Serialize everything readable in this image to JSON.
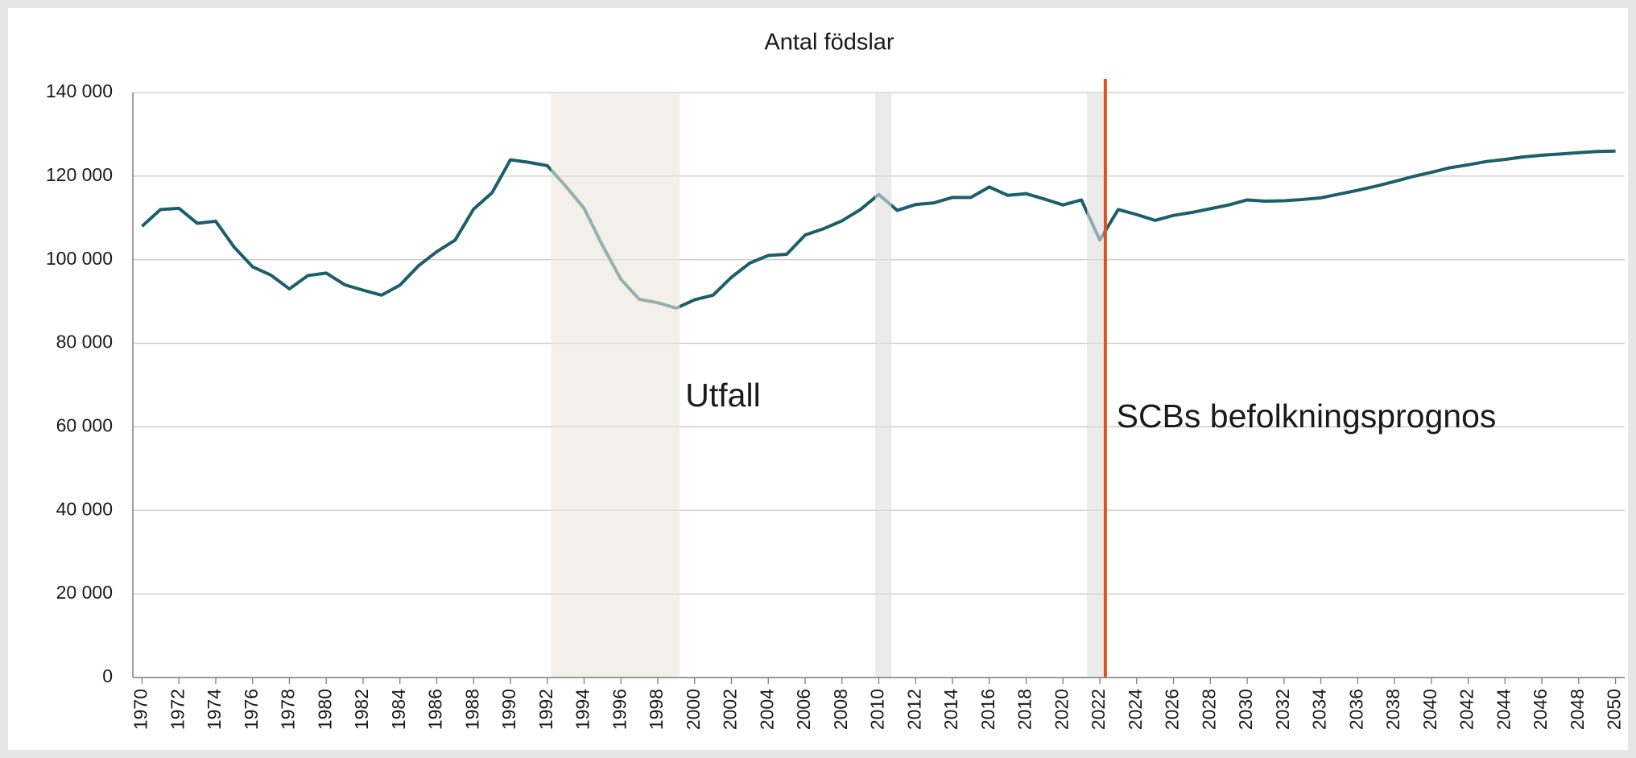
{
  "chart_data": {
    "type": "line",
    "title": "Antal födslar",
    "x": [
      1970,
      1971,
      1972,
      1973,
      1974,
      1975,
      1976,
      1977,
      1978,
      1979,
      1980,
      1981,
      1982,
      1983,
      1984,
      1985,
      1986,
      1987,
      1988,
      1989,
      1990,
      1991,
      1992,
      1993,
      1994,
      1995,
      1996,
      1997,
      1998,
      1999,
      2000,
      2001,
      2002,
      2003,
      2004,
      2005,
      2006,
      2007,
      2008,
      2009,
      2010,
      2011,
      2012,
      2013,
      2014,
      2015,
      2016,
      2017,
      2018,
      2019,
      2020,
      2021,
      2022,
      2023,
      2024,
      2025,
      2026,
      2027,
      2028,
      2029,
      2030,
      2031,
      2032,
      2033,
      2034,
      2035,
      2036,
      2037,
      2038,
      2039,
      2040,
      2041,
      2042,
      2043,
      2044,
      2045,
      2046,
      2047,
      2048,
      2049,
      2050
    ],
    "series": [
      {
        "name": "Antal födslar",
        "color": "#1b5f6b",
        "values": [
          108000,
          112000,
          112300,
          108700,
          109200,
          103000,
          98300,
          96300,
          93000,
          96200,
          96800,
          94000,
          92700,
          91500,
          93900,
          98500,
          101900,
          104700,
          112100,
          116000,
          123900,
          123300,
          122500,
          117600,
          112300,
          103400,
          95300,
          90500,
          89700,
          88400,
          90400,
          91500,
          95800,
          99200,
          101000,
          101300,
          105900,
          107400,
          109300,
          112000,
          115600,
          111800,
          113200,
          113600,
          114900,
          114900,
          117400,
          115400,
          115800,
          114500,
          113100,
          114300,
          104700,
          112000,
          110800,
          109400,
          110600,
          111300,
          112200,
          113100,
          114300,
          114000,
          114100,
          114400,
          114800,
          115700,
          116600,
          117600,
          118700,
          119900,
          120900,
          122000,
          122700,
          123500,
          124000,
          124600,
          125000,
          125300,
          125600,
          125900,
          126000
        ]
      }
    ],
    "xlim": [
      1969.5,
      2050.5
    ],
    "xticks": [
      1970,
      1972,
      1974,
      1976,
      1978,
      1980,
      1982,
      1984,
      1986,
      1988,
      1990,
      1992,
      1994,
      1996,
      1998,
      2000,
      2002,
      2004,
      2006,
      2008,
      2010,
      2012,
      2014,
      2016,
      2018,
      2020,
      2022,
      2024,
      2026,
      2028,
      2030,
      2032,
      2034,
      2036,
      2038,
      2040,
      2042,
      2044,
      2046,
      2048,
      2050
    ],
    "ylim": [
      0,
      140000
    ],
    "yticks": [
      0,
      {
        "value": 20000,
        "label": "20 000"
      },
      {
        "value": 40000,
        "label": "40 000"
      },
      {
        "value": 60000,
        "label": "60 000"
      },
      {
        "value": 80000,
        "label": "80 000"
      },
      {
        "value": 100000,
        "label": "100 000"
      },
      {
        "value": 120000,
        "label": "120 000"
      },
      {
        "value": 140000,
        "label": "140 000"
      }
    ],
    "grid": true,
    "shaded_periods": [
      {
        "from": 1992.2,
        "to": 1999.2,
        "color": "#e9e6d9"
      },
      {
        "from": 2009.8,
        "to": 2010.7,
        "color": "#dedede"
      },
      {
        "from": 2021.3,
        "to": 2022.2,
        "color": "#dedede"
      }
    ],
    "forecast_line": {
      "x": 2022.3,
      "color": "#d9541e"
    },
    "annotations": [
      {
        "text": "Utfall",
        "x": 1999.5,
        "y": 67000
      },
      {
        "text": "SCBs befolkningsprognos",
        "x": 2022.9,
        "y": 62000
      }
    ]
  }
}
